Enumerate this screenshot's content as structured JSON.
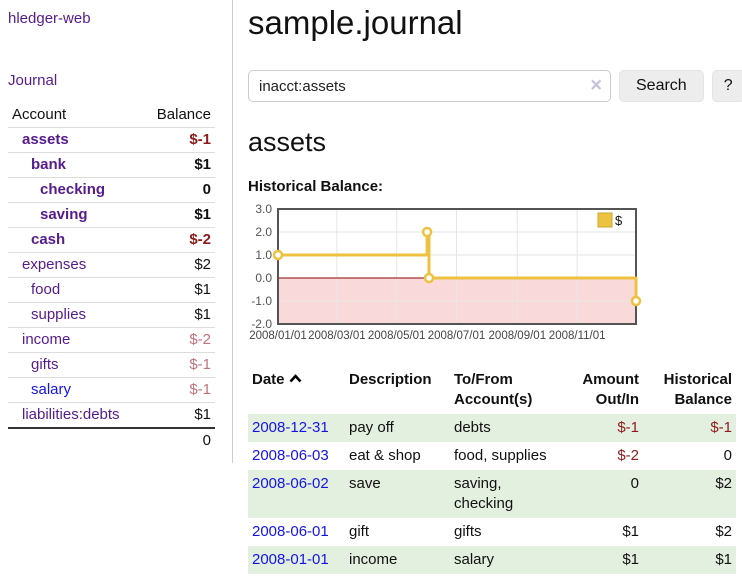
{
  "app": {
    "brand": "hledger-web"
  },
  "sidebar": {
    "nav": {
      "journal_label": "Journal"
    },
    "accounts_table": {
      "headers": {
        "account": "Account",
        "balance": "Balance"
      },
      "rows": [
        {
          "account": "assets",
          "balance": "$-1"
        },
        {
          "account": "bank",
          "balance": "$1"
        },
        {
          "account": "checking",
          "balance": "0"
        },
        {
          "account": "saving",
          "balance": "$1"
        },
        {
          "account": "cash",
          "balance": "$-2"
        },
        {
          "account": "expenses",
          "balance": "$2"
        },
        {
          "account": "food",
          "balance": "$1"
        },
        {
          "account": "supplies",
          "balance": "$1"
        },
        {
          "account": "income",
          "balance": "$-2"
        },
        {
          "account": "gifts",
          "balance": "$-1"
        },
        {
          "account": "salary",
          "balance": "$-1"
        },
        {
          "account": "liabilities:debts",
          "balance": "$1"
        }
      ],
      "total": "0"
    }
  },
  "header": {
    "title": "sample.journal"
  },
  "search": {
    "query": "inacct:assets",
    "clear_icon": "×",
    "search_label": "Search",
    "help_label": "?"
  },
  "register": {
    "heading": "assets",
    "chart_label": "Historical Balance:",
    "table": {
      "headers": {
        "date": "Date",
        "description": "Description",
        "tofrom": "To/From Account(s)",
        "amount": "Amount Out/In",
        "balance": "Historical Balance"
      },
      "rows": [
        {
          "date": "2008-12-31",
          "description": "pay off",
          "tofrom": "debts",
          "amount": "$-1",
          "balance": "$-1"
        },
        {
          "date": "2008-06-03",
          "description": "eat & shop",
          "tofrom": "food, supplies",
          "amount": "$-2",
          "balance": "0"
        },
        {
          "date": "2008-06-02",
          "description": "save",
          "tofrom": "saving, checking",
          "amount": "0",
          "balance": "$2"
        },
        {
          "date": "2008-06-01",
          "description": "gift",
          "tofrom": "gifts",
          "amount": "$1",
          "balance": "$2"
        },
        {
          "date": "2008-01-01",
          "description": "income",
          "tofrom": "salary",
          "amount": "$1",
          "balance": "$1"
        }
      ]
    }
  },
  "chart_data": {
    "type": "line",
    "step": true,
    "title": "Historical Balance",
    "series": [
      {
        "name": "$",
        "color": "#edc240",
        "points": [
          {
            "x": "2008-01-01",
            "y": 1
          },
          {
            "x": "2008-06-01",
            "y": 2
          },
          {
            "x": "2008-06-03",
            "y": 0
          },
          {
            "x": "2008-12-31",
            "y": -1
          }
        ]
      }
    ],
    "xlim": [
      "2008-01-01",
      "2008-12-31"
    ],
    "ylim": [
      -2.0,
      3.0
    ],
    "xticks": [
      "2008/01/01",
      "2008/03/01",
      "2008/05/01",
      "2008/07/01",
      "2008/09/01",
      "2008/11/01"
    ],
    "yticks": [
      "3.0",
      "2.0",
      "1.0",
      "0.0",
      "-1.0",
      "-2.0"
    ],
    "legend": {
      "label": "$",
      "position": "top-right"
    },
    "grid": true,
    "negative_region_color": "#f9d9d9",
    "zero_line_color": "#8b0000",
    "border_color": "#545454",
    "grid_color": "#e6e6e6"
  }
}
